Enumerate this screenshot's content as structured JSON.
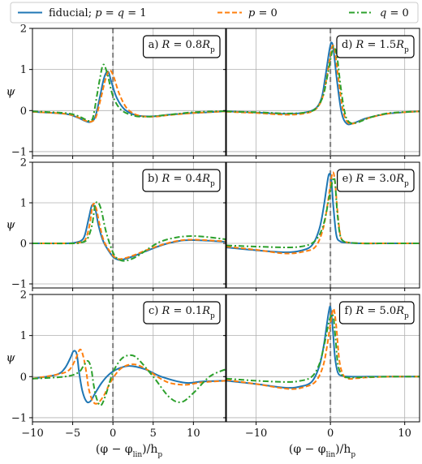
{
  "chart_data": {
    "type": "line",
    "legend": {
      "placement": "top",
      "entries": [
        {
          "label": "fiducial; p = q = 1",
          "color": "#1f77b4",
          "dash": "solid"
        },
        {
          "label": "p = 0",
          "color": "#ff7f0e",
          "dash": "dashed"
        },
        {
          "label": "q = 0",
          "color": "#2ca02c",
          "dash": "dashdot"
        }
      ]
    },
    "xlabel": "(φ − φ_lin)/h_p",
    "ylabel": "ψ",
    "vline": {
      "x": 0,
      "color": "#808080",
      "style": "dashed"
    },
    "grid": true,
    "columns": [
      {
        "xlim": [
          -10,
          14
        ],
        "xticks": [
          -10,
          -5,
          0,
          5,
          10
        ],
        "xtick_labels": [
          "−10",
          "−5",
          "0",
          "5",
          "10"
        ]
      },
      {
        "xlim": [
          -14,
          12
        ],
        "xticks": [
          -10,
          0,
          10
        ],
        "xtick_labels": [
          "−10",
          "0",
          "10"
        ]
      }
    ],
    "ylim": [
      -1.1,
      2.0
    ],
    "yticks": [
      -1,
      0,
      1,
      2
    ],
    "ytick_labels": [
      "−1",
      "0",
      "1",
      "2"
    ],
    "panels": [
      {
        "label": "a) R = 0.8R_p",
        "col": 0,
        "row": 0,
        "series": [
          {
            "name": "fiducial; p = q = 1",
            "x": [
              -10,
              -6,
              -4.5,
              -3.5,
              -2.8,
              -2.2,
              -1.6,
              -1.1,
              -0.6,
              -0.2,
              0.5,
              1.5,
              3,
              5,
              7,
              10,
              14
            ],
            "y": [
              -0.03,
              -0.08,
              -0.16,
              -0.25,
              -0.28,
              -0.15,
              0.35,
              0.8,
              0.95,
              0.7,
              0.3,
              0.02,
              -0.12,
              -0.14,
              -0.1,
              -0.06,
              -0.02
            ]
          },
          {
            "name": "p = 0",
            "x": [
              -10,
              -6,
              -4.5,
              -3.5,
              -2.7,
              -2.1,
              -1.5,
              -0.9,
              -0.4,
              0.1,
              0.8,
              1.8,
              3.2,
              5,
              7,
              10,
              14
            ],
            "y": [
              -0.03,
              -0.08,
              -0.15,
              -0.24,
              -0.27,
              -0.15,
              0.3,
              0.78,
              0.98,
              0.82,
              0.4,
              0.04,
              -0.12,
              -0.15,
              -0.11,
              -0.06,
              -0.02
            ]
          },
          {
            "name": "q = 0",
            "x": [
              -10,
              -6,
              -4.5,
              -3.6,
              -3,
              -2.5,
              -2,
              -1.6,
              -1.2,
              -0.7,
              0,
              1,
              2.5,
              4,
              6,
              8,
              10,
              14
            ],
            "y": [
              -0.02,
              -0.06,
              -0.12,
              -0.2,
              -0.25,
              -0.18,
              0.35,
              0.8,
              1.12,
              0.9,
              0.35,
              0.02,
              -0.12,
              -0.15,
              -0.12,
              -0.08,
              -0.04,
              -0.01
            ]
          }
        ]
      },
      {
        "label": "b) R = 0.4R_p",
        "col": 0,
        "row": 1,
        "series": [
          {
            "name": "fiducial; p = q = 1",
            "x": [
              -10,
              -6,
              -5,
              -4,
              -3.5,
              -3,
              -2.6,
              -2.2,
              -1.8,
              -1.3,
              -0.8,
              0,
              0.6,
              1.2,
              2.5,
              4,
              6,
              8,
              10,
              14
            ],
            "y": [
              0,
              0,
              0.01,
              0.06,
              0.2,
              0.62,
              0.94,
              0.85,
              0.45,
              0.1,
              -0.1,
              -0.33,
              -0.4,
              -0.4,
              -0.32,
              -0.2,
              -0.05,
              0.05,
              0.08,
              0.04
            ]
          },
          {
            "name": "p = 0",
            "x": [
              -10,
              -6,
              -5,
              -4,
              -3.4,
              -2.9,
              -2.5,
              -2.1,
              -1.7,
              -1.2,
              -0.7,
              0,
              0.6,
              1.2,
              2.5,
              4,
              6,
              8,
              10,
              14
            ],
            "y": [
              0,
              0,
              0,
              0.03,
              0.1,
              0.45,
              0.95,
              0.88,
              0.5,
              0.1,
              -0.1,
              -0.3,
              -0.38,
              -0.38,
              -0.3,
              -0.18,
              -0.04,
              0.06,
              0.09,
              0.05
            ]
          },
          {
            "name": "q = 0",
            "x": [
              -10,
              -5,
              -4,
              -3.2,
              -2.6,
              -2.2,
              -1.8,
              -1.4,
              -1,
              -0.5,
              0.2,
              1,
              1.8,
              3,
              4.5,
              6,
              8,
              10,
              12,
              14
            ],
            "y": [
              0,
              0,
              0.02,
              0.1,
              0.45,
              0.95,
              1.0,
              0.78,
              0.4,
              0.05,
              -0.3,
              -0.42,
              -0.42,
              -0.32,
              -0.12,
              0.05,
              0.15,
              0.18,
              0.15,
              0.1
            ]
          }
        ]
      },
      {
        "label": "c) R = 0.1R_p",
        "col": 0,
        "row": 2,
        "series": [
          {
            "name": "fiducial; p = q = 1",
            "x": [
              -10,
              -7,
              -6,
              -5.3,
              -4.9,
              -4.5,
              -4.2,
              -3.8,
              -3.3,
              -2.8,
              -2.2,
              -1.4,
              -0.5,
              0.5,
              2,
              4,
              6,
              9,
              11,
              14
            ],
            "y": [
              -0.05,
              0.05,
              0.2,
              0.45,
              0.62,
              0.55,
              0.1,
              -0.35,
              -0.6,
              -0.6,
              -0.4,
              -0.15,
              0.05,
              0.18,
              0.26,
              0.18,
              0,
              -0.15,
              -0.12,
              -0.1
            ]
          },
          {
            "name": "p = 0",
            "x": [
              -10,
              -7,
              -5.5,
              -4.7,
              -4.1,
              -3.7,
              -3.3,
              -3,
              -2.5,
              -1.9,
              -1.1,
              -0.2,
              1,
              2.5,
              4,
              5.5,
              7,
              9,
              11,
              14
            ],
            "y": [
              -0.05,
              0.05,
              0.15,
              0.4,
              0.66,
              0.5,
              0.1,
              -0.3,
              -0.6,
              -0.65,
              -0.45,
              -0.1,
              0.2,
              0.3,
              0.2,
              0,
              -0.15,
              -0.2,
              -0.14,
              -0.1
            ]
          },
          {
            "name": "q = 0",
            "x": [
              -10,
              -6,
              -4.3,
              -3.6,
              -3.1,
              -2.7,
              -2.4,
              -2,
              -1.5,
              -0.9,
              0,
              1,
              2,
              3,
              5,
              7,
              8.5,
              10,
              12,
              14
            ],
            "y": [
              -0.05,
              0,
              0.1,
              0.28,
              0.38,
              0.2,
              -0.2,
              -0.55,
              -0.7,
              -0.45,
              0.1,
              0.42,
              0.52,
              0.45,
              0,
              -0.5,
              -0.62,
              -0.4,
              0,
              0.18
            ]
          }
        ]
      },
      {
        "label": "d) R = 1.5R_p",
        "col": 1,
        "row": 0,
        "series": [
          {
            "name": "fiducial; p = q = 1",
            "x": [
              -14,
              -10,
              -6,
              -3.5,
              -2,
              -1.2,
              -0.7,
              -0.2,
              0.1,
              0.4,
              0.9,
              1.5,
              2.2,
              3.2,
              5,
              8,
              12
            ],
            "y": [
              -0.02,
              -0.05,
              -0.08,
              -0.05,
              0.05,
              0.3,
              0.8,
              1.4,
              1.65,
              1.5,
              0.7,
              -0.05,
              -0.32,
              -0.3,
              -0.18,
              -0.07,
              -0.02
            ]
          },
          {
            "name": "p = 0",
            "x": [
              -14,
              -10,
              -6,
              -3.5,
              -2,
              -1.1,
              -0.5,
              0,
              0.3,
              0.6,
              1.1,
              1.7,
              2.4,
              3.4,
              5.2,
              8,
              12
            ],
            "y": [
              -0.03,
              -0.06,
              -0.1,
              -0.07,
              0.03,
              0.3,
              0.8,
              1.35,
              1.58,
              1.45,
              0.75,
              0,
              -0.3,
              -0.3,
              -0.18,
              -0.07,
              -0.02
            ]
          },
          {
            "name": "q = 0",
            "x": [
              -14,
              -10,
              -6,
              -3.5,
              -2,
              -1,
              -0.4,
              0.2,
              0.5,
              0.9,
              1.4,
              2,
              2.7,
              3.8,
              5.5,
              8,
              12
            ],
            "y": [
              -0.02,
              -0.04,
              -0.07,
              -0.05,
              0.04,
              0.35,
              0.85,
              1.42,
              1.55,
              1.3,
              0.55,
              -0.1,
              -0.3,
              -0.28,
              -0.16,
              -0.06,
              -0.02
            ]
          }
        ]
      },
      {
        "label": "e) R = 3.0R_p",
        "col": 1,
        "row": 1,
        "series": [
          {
            "name": "fiducial; p = q = 1",
            "x": [
              -14,
              -10,
              -6,
              -4,
              -2.5,
              -1.5,
              -0.9,
              -0.5,
              -0.2,
              0.1,
              0.4,
              0.8,
              1.3,
              2,
              4,
              8,
              12
            ],
            "y": [
              -0.1,
              -0.17,
              -0.22,
              -0.18,
              -0.05,
              0.35,
              0.9,
              1.4,
              1.7,
              1.6,
              0.9,
              0.2,
              0.05,
              0.02,
              0,
              0,
              0
            ]
          },
          {
            "name": "p = 0",
            "x": [
              -14,
              -10,
              -6,
              -3.5,
              -2,
              -1,
              -0.4,
              0,
              0.3,
              0.6,
              1,
              1.4,
              2,
              3,
              5,
              8,
              12
            ],
            "y": [
              -0.08,
              -0.16,
              -0.25,
              -0.2,
              -0.08,
              0.35,
              0.95,
              1.45,
              1.75,
              1.55,
              0.7,
              0.15,
              0.04,
              0.01,
              0,
              0,
              0
            ]
          },
          {
            "name": "q = 0",
            "x": [
              -14,
              -10,
              -6,
              -4,
              -2.5,
              -1.5,
              -0.8,
              -0.2,
              0.3,
              0.6,
              0.9,
              1.3,
              1.8,
              2.5,
              4,
              8,
              12
            ],
            "y": [
              -0.05,
              -0.08,
              -0.1,
              -0.08,
              0,
              0.2,
              0.55,
              1.1,
              1.55,
              1.55,
              0.8,
              0.2,
              0.05,
              0.02,
              0,
              0,
              0
            ]
          }
        ]
      },
      {
        "label": "f) R = 5.0R_p",
        "col": 1,
        "row": 2,
        "series": [
          {
            "name": "fiducial; p = q = 1",
            "x": [
              -14,
              -10,
              -6,
              -4,
              -2.5,
              -1.5,
              -0.9,
              -0.5,
              -0.2,
              0,
              0.3,
              0.6,
              1,
              1.6,
              2.5,
              5,
              8,
              12
            ],
            "y": [
              -0.1,
              -0.18,
              -0.27,
              -0.24,
              -0.12,
              0.25,
              0.75,
              1.25,
              1.6,
              1.68,
              1.2,
              0.5,
              0.1,
              0.02,
              0,
              0,
              0,
              0
            ]
          },
          {
            "name": "p = 0",
            "x": [
              -14,
              -10,
              -5.5,
              -3.5,
              -2,
              -1,
              -0.4,
              0,
              0.3,
              0.5,
              0.8,
              1.2,
              1.7,
              2.4,
              3.5,
              5,
              8,
              12
            ],
            "y": [
              -0.08,
              -0.18,
              -0.3,
              -0.25,
              -0.12,
              0.25,
              0.8,
              1.3,
              1.6,
              1.62,
              1.2,
              0.4,
              0.05,
              -0.05,
              -0.04,
              -0.02,
              0,
              0
            ]
          },
          {
            "name": "q = 0",
            "x": [
              -14,
              -10,
              -6,
              -4,
              -2.5,
              -1.5,
              -0.8,
              -0.3,
              0.1,
              0.4,
              0.7,
              1,
              1.5,
              2.2,
              3.5,
              5,
              8,
              12
            ],
            "y": [
              -0.05,
              -0.1,
              -0.13,
              -0.1,
              0,
              0.3,
              0.8,
              1.25,
              1.5,
              1.45,
              0.9,
              0.3,
              0.05,
              -0.02,
              -0.02,
              -0.01,
              0,
              0
            ]
          }
        ]
      }
    ]
  }
}
